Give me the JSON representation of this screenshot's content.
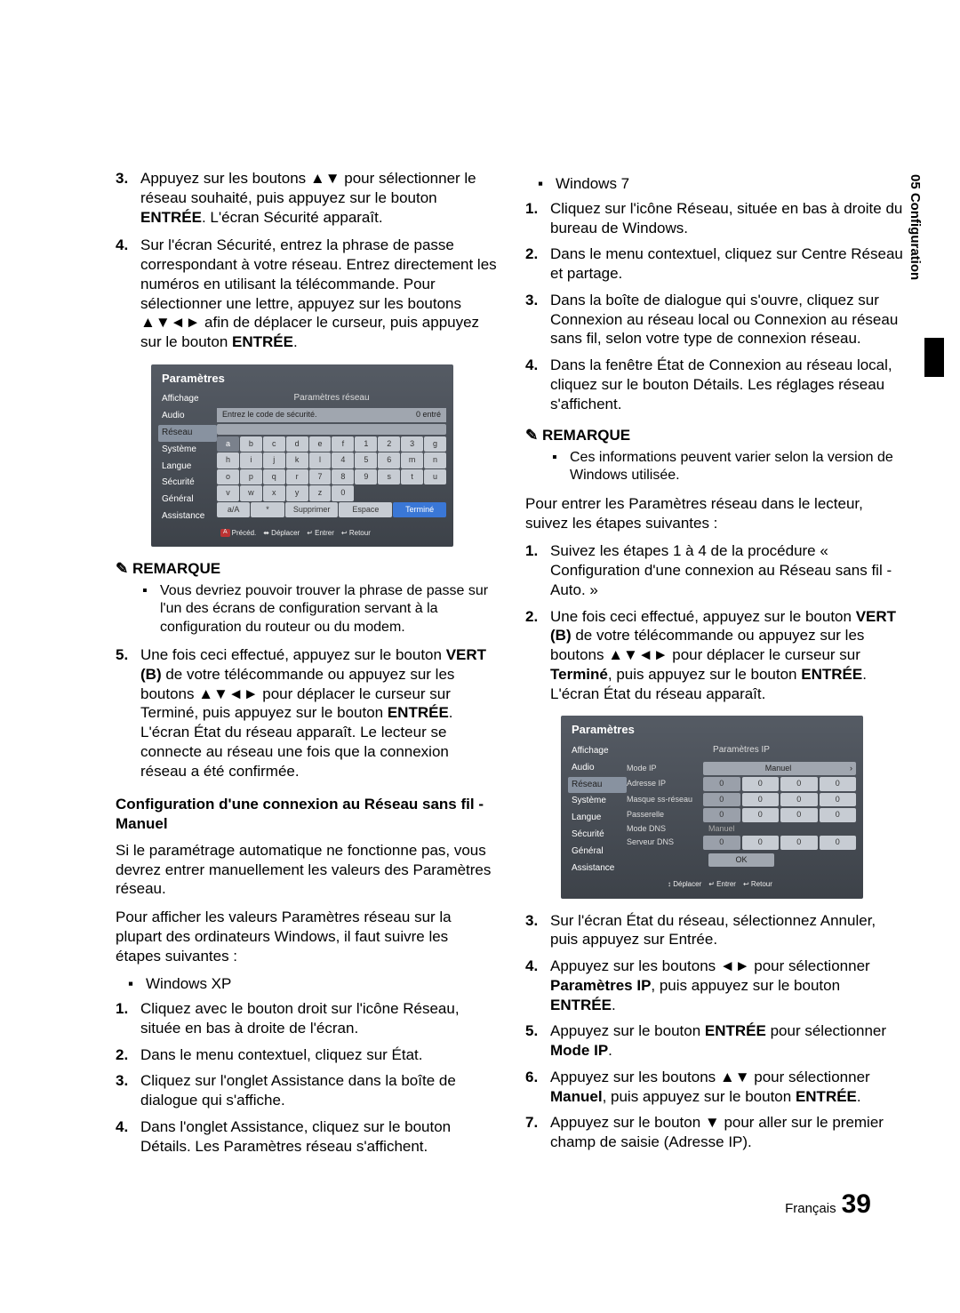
{
  "sideTab": "05  Configuration",
  "left": {
    "s3": "Appuyez sur les boutons ▲▼ pour sélectionner le réseau souhaité, puis appuyez sur le bouton <b>ENTRÉE</b>. L'écran Sécurité apparaît.",
    "s4": "Sur l'écran Sécurité, entrez la phrase de passe correspondant à votre réseau. Entrez directement les numéros en utilisant la télécommande. Pour sélectionner une lettre, appuyez sur les boutons ▲▼◄► afin de déplacer le curseur, puis appuyez sur le bouton <b>ENTRÉE</b>.",
    "note1": "Vous devriez pouvoir trouver la phrase de passe sur l'un des écrans de configuration servant à la configuration du routeur ou du modem.",
    "s5": "Une fois ceci effectué, appuyez sur le bouton <b>VERT (B)</b> de votre télécommande ou appuyez sur les boutons ▲▼◄► pour déplacer le curseur sur Terminé, puis appuyez sur le bouton <b>ENTRÉE</b>. L'écran État du réseau apparaît. Le lecteur se connecte au réseau une fois que la connexion réseau a été confirmée.",
    "subhead": "Configuration d'une connexion au Réseau sans fil - Manuel",
    "p1": "Si le paramétrage automatique ne fonctionne pas, vous devrez entrer manuellement les valeurs des Paramètres réseau.",
    "p2": "Pour afficher les valeurs Paramètres réseau sur la plupart des ordinateurs Windows, il faut suivre les étapes suivantes :",
    "xp": "Windows XP",
    "xp1": "Cliquez avec le bouton droit sur l'icône Réseau, située en bas à droite de l'écran.",
    "xp2": "Dans le menu contextuel, cliquez sur État.",
    "xp3": "Cliquez sur l'onglet Assistance dans la boîte de dialogue qui s'affiche.",
    "xp4": "Dans l'onglet Assistance, cliquez sur le bouton Détails. Les Paramètres réseau s'affichent."
  },
  "right": {
    "w7": "Windows 7",
    "w71": "Cliquez sur l'icône Réseau, située en bas à droite du bureau de Windows.",
    "w72": "Dans le menu contextuel, cliquez sur Centre Réseau et partage.",
    "w73": "Dans la boîte de dialogue qui s'ouvre, cliquez sur Connexion au réseau local ou Connexion au réseau sans fil, selon votre type de connexion réseau.",
    "w74": "Dans la fenêtre État de Connexion au réseau local, cliquez sur le bouton Détails. Les réglages réseau s'affichent.",
    "note2": "Ces informations peuvent varier selon la version de Windows utilisée.",
    "p1": "Pour entrer les Paramètres réseau dans le lecteur, suivez les étapes suivantes :",
    "r1": "Suivez les étapes 1 à 4 de la procédure « Configuration d'une connexion au Réseau sans fil - Auto. »",
    "r2": "Une fois ceci effectué, appuyez sur le bouton <b>VERT (B)</b> de votre télécommande ou appuyez sur les boutons ▲▼◄► pour déplacer le curseur sur <b>Terminé</b>, puis appuyez sur le bouton <b>ENTRÉE</b>. L'écran État du réseau apparaît.",
    "r3": "Sur l'écran État du réseau, sélectionnez Annuler, puis appuyez sur Entrée.",
    "r4": "Appuyez sur les boutons ◄► pour sélectionner <b>Paramètres IP</b>, puis appuyez sur le bouton <b>ENTRÉE</b>.",
    "r5": "Appuyez sur le bouton <b>ENTRÉE</b> pour sélectionner <b>Mode IP</b>.",
    "r6": "Appuyez sur les boutons ▲▼ pour sélectionner <b>Manuel</b>, puis appuyez sur le bouton <b>ENTRÉE</b>.",
    "r7": "Appuyez sur le bouton ▼ pour aller sur le premier champ de saisie (Adresse IP)."
  },
  "panel1": {
    "title": "Paramètres",
    "side": [
      "Affichage",
      "Audio",
      "Réseau",
      "Système",
      "Langue",
      "Sécurité",
      "Général",
      "Assistance"
    ],
    "subtitle": "Paramètres réseau",
    "prompt": "Entrez le code de sécurité.",
    "entered": "0 entré",
    "keys": [
      "a",
      "b",
      "c",
      "d",
      "e",
      "f",
      "1",
      "2",
      "3",
      "g",
      "h",
      "i",
      "j",
      "k",
      "l",
      "4",
      "5",
      "6",
      "m",
      "n",
      "o",
      "p",
      "q",
      "r",
      "7",
      "8",
      "9",
      "s",
      "t",
      "u",
      "v",
      "w",
      "x",
      "y",
      "z",
      "0"
    ],
    "bottom": [
      "a/A",
      "*",
      "Supprimer",
      "Espace",
      "Terminé"
    ],
    "footer": [
      "a Précéd.",
      "⬌ Déplacer",
      "↵ Entrer",
      "↩ Retour"
    ]
  },
  "panel2": {
    "title": "Paramètres",
    "side": [
      "Affichage",
      "Audio",
      "Réseau",
      "Système",
      "Langue",
      "Sécurité",
      "Général",
      "Assistance"
    ],
    "subtitle": "Paramètres IP",
    "rows": [
      {
        "label": "Mode IP",
        "type": "sel",
        "val": "Manuel"
      },
      {
        "label": "Adresse IP",
        "type": "cells"
      },
      {
        "label": "Masque ss-réseau",
        "type": "cells"
      },
      {
        "label": "Passerelle",
        "type": "cells"
      },
      {
        "label": "Mode DNS",
        "type": "text",
        "val": "Manuel"
      },
      {
        "label": "Serveur DNS",
        "type": "cells"
      }
    ],
    "ok": "OK",
    "footer": [
      "↕ Déplacer",
      "↵ Entrer",
      "↩ Retour"
    ]
  },
  "remarque": "✎ REMARQUE",
  "footer": {
    "lang": "Français",
    "page": "39"
  }
}
